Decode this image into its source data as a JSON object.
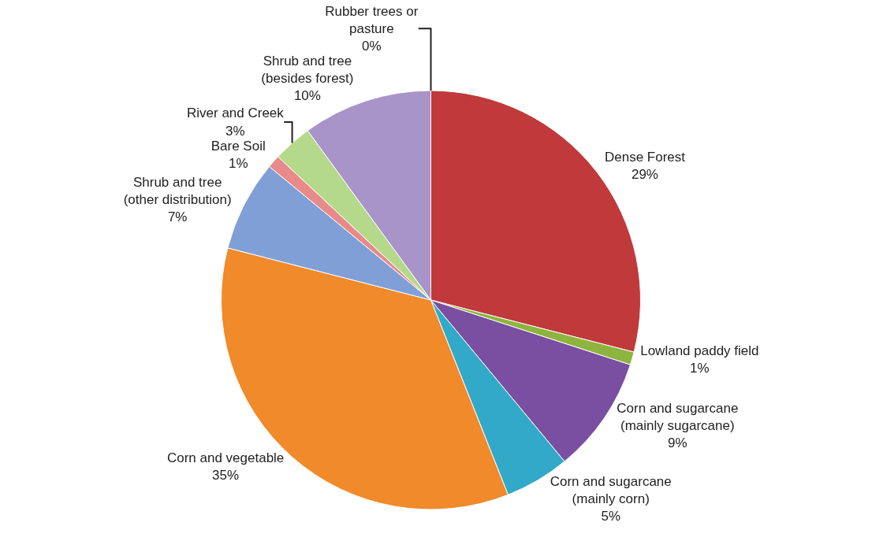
{
  "chart_data": {
    "type": "pie",
    "categories": [
      "Dense Forest",
      "Lowland paddy field",
      "Corn and sugarcane (mainly sugarcane)",
      "Corn and sugarcane (mainly corn)",
      "Corn and vegetable",
      "Shrub and tree (other distribution)",
      "Bare Soil",
      "River and Creek",
      "Shrub and tree (besides forest)",
      "Rubber trees or pasture"
    ],
    "values": [
      29,
      1,
      9,
      5,
      35,
      7,
      1,
      3,
      10,
      0
    ],
    "colors": [
      "#c0393b",
      "#8db43e",
      "#7a4ea0",
      "#33a9c9",
      "#f08a2a",
      "#7f9fd6",
      "#e88a8a",
      "#b5d98a",
      "#a994c9",
      "#d9d9d9"
    ],
    "value_labels": [
      "29%",
      "1%",
      "9%",
      "5%",
      "35%",
      "7%",
      "1%",
      "3%",
      "10%",
      "0%"
    ],
    "legend": false
  }
}
